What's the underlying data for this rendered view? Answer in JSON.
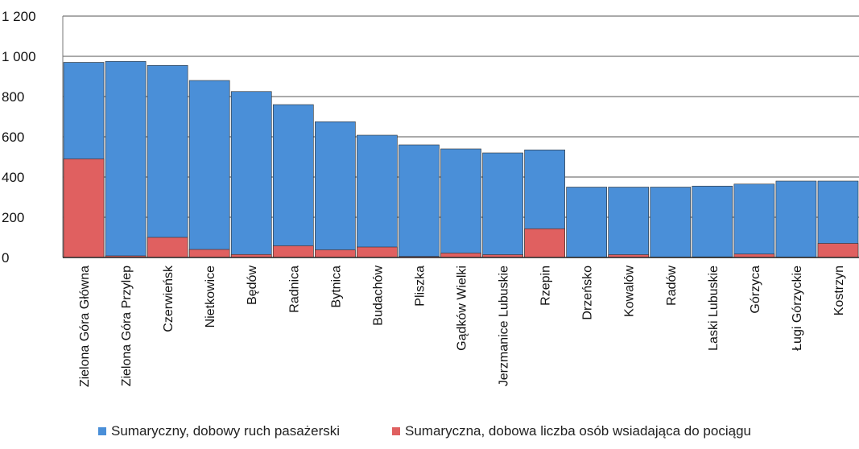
{
  "chart_data": {
    "type": "bar",
    "ylim": [
      0,
      1200
    ],
    "yticks": [
      0,
      200,
      400,
      600,
      800,
      1000,
      1200
    ],
    "ytick_labels": [
      "0",
      "200",
      "400",
      "600",
      "800",
      "1 000",
      "1 200"
    ],
    "grid": true,
    "legend_position": "bottom",
    "categories": [
      "Zielona Góra Główna",
      "Zielona Góra Przylep",
      "Czerwieńsk",
      "Nietkowice",
      "Będów",
      "Radnica",
      "Bytnica",
      "Budachów",
      "Pliszka",
      "Gądków Wielki",
      "Jerzmanice Lubuskie",
      "Rzepin",
      "Drzeńsko",
      "Kowalów",
      "Radów",
      "Laski Lubuskie",
      "Górzyca",
      "Ługi Górzyckie",
      "Kostrzyn"
    ],
    "series": [
      {
        "name": "Sumaryczny, dobowy ruch pasażerski",
        "color": "#4a8fd8",
        "values": [
          970,
          975,
          955,
          880,
          825,
          760,
          675,
          608,
          560,
          540,
          520,
          535,
          350,
          350,
          350,
          355,
          365,
          380,
          380
        ]
      },
      {
        "name": "Sumaryczna, dobowa liczba osób wsiadająca do pociągu",
        "color": "#e06060",
        "values": [
          490,
          8,
          100,
          40,
          15,
          58,
          38,
          52,
          5,
          22,
          14,
          143,
          2,
          14,
          2,
          3,
          17,
          2,
          70
        ]
      }
    ]
  }
}
